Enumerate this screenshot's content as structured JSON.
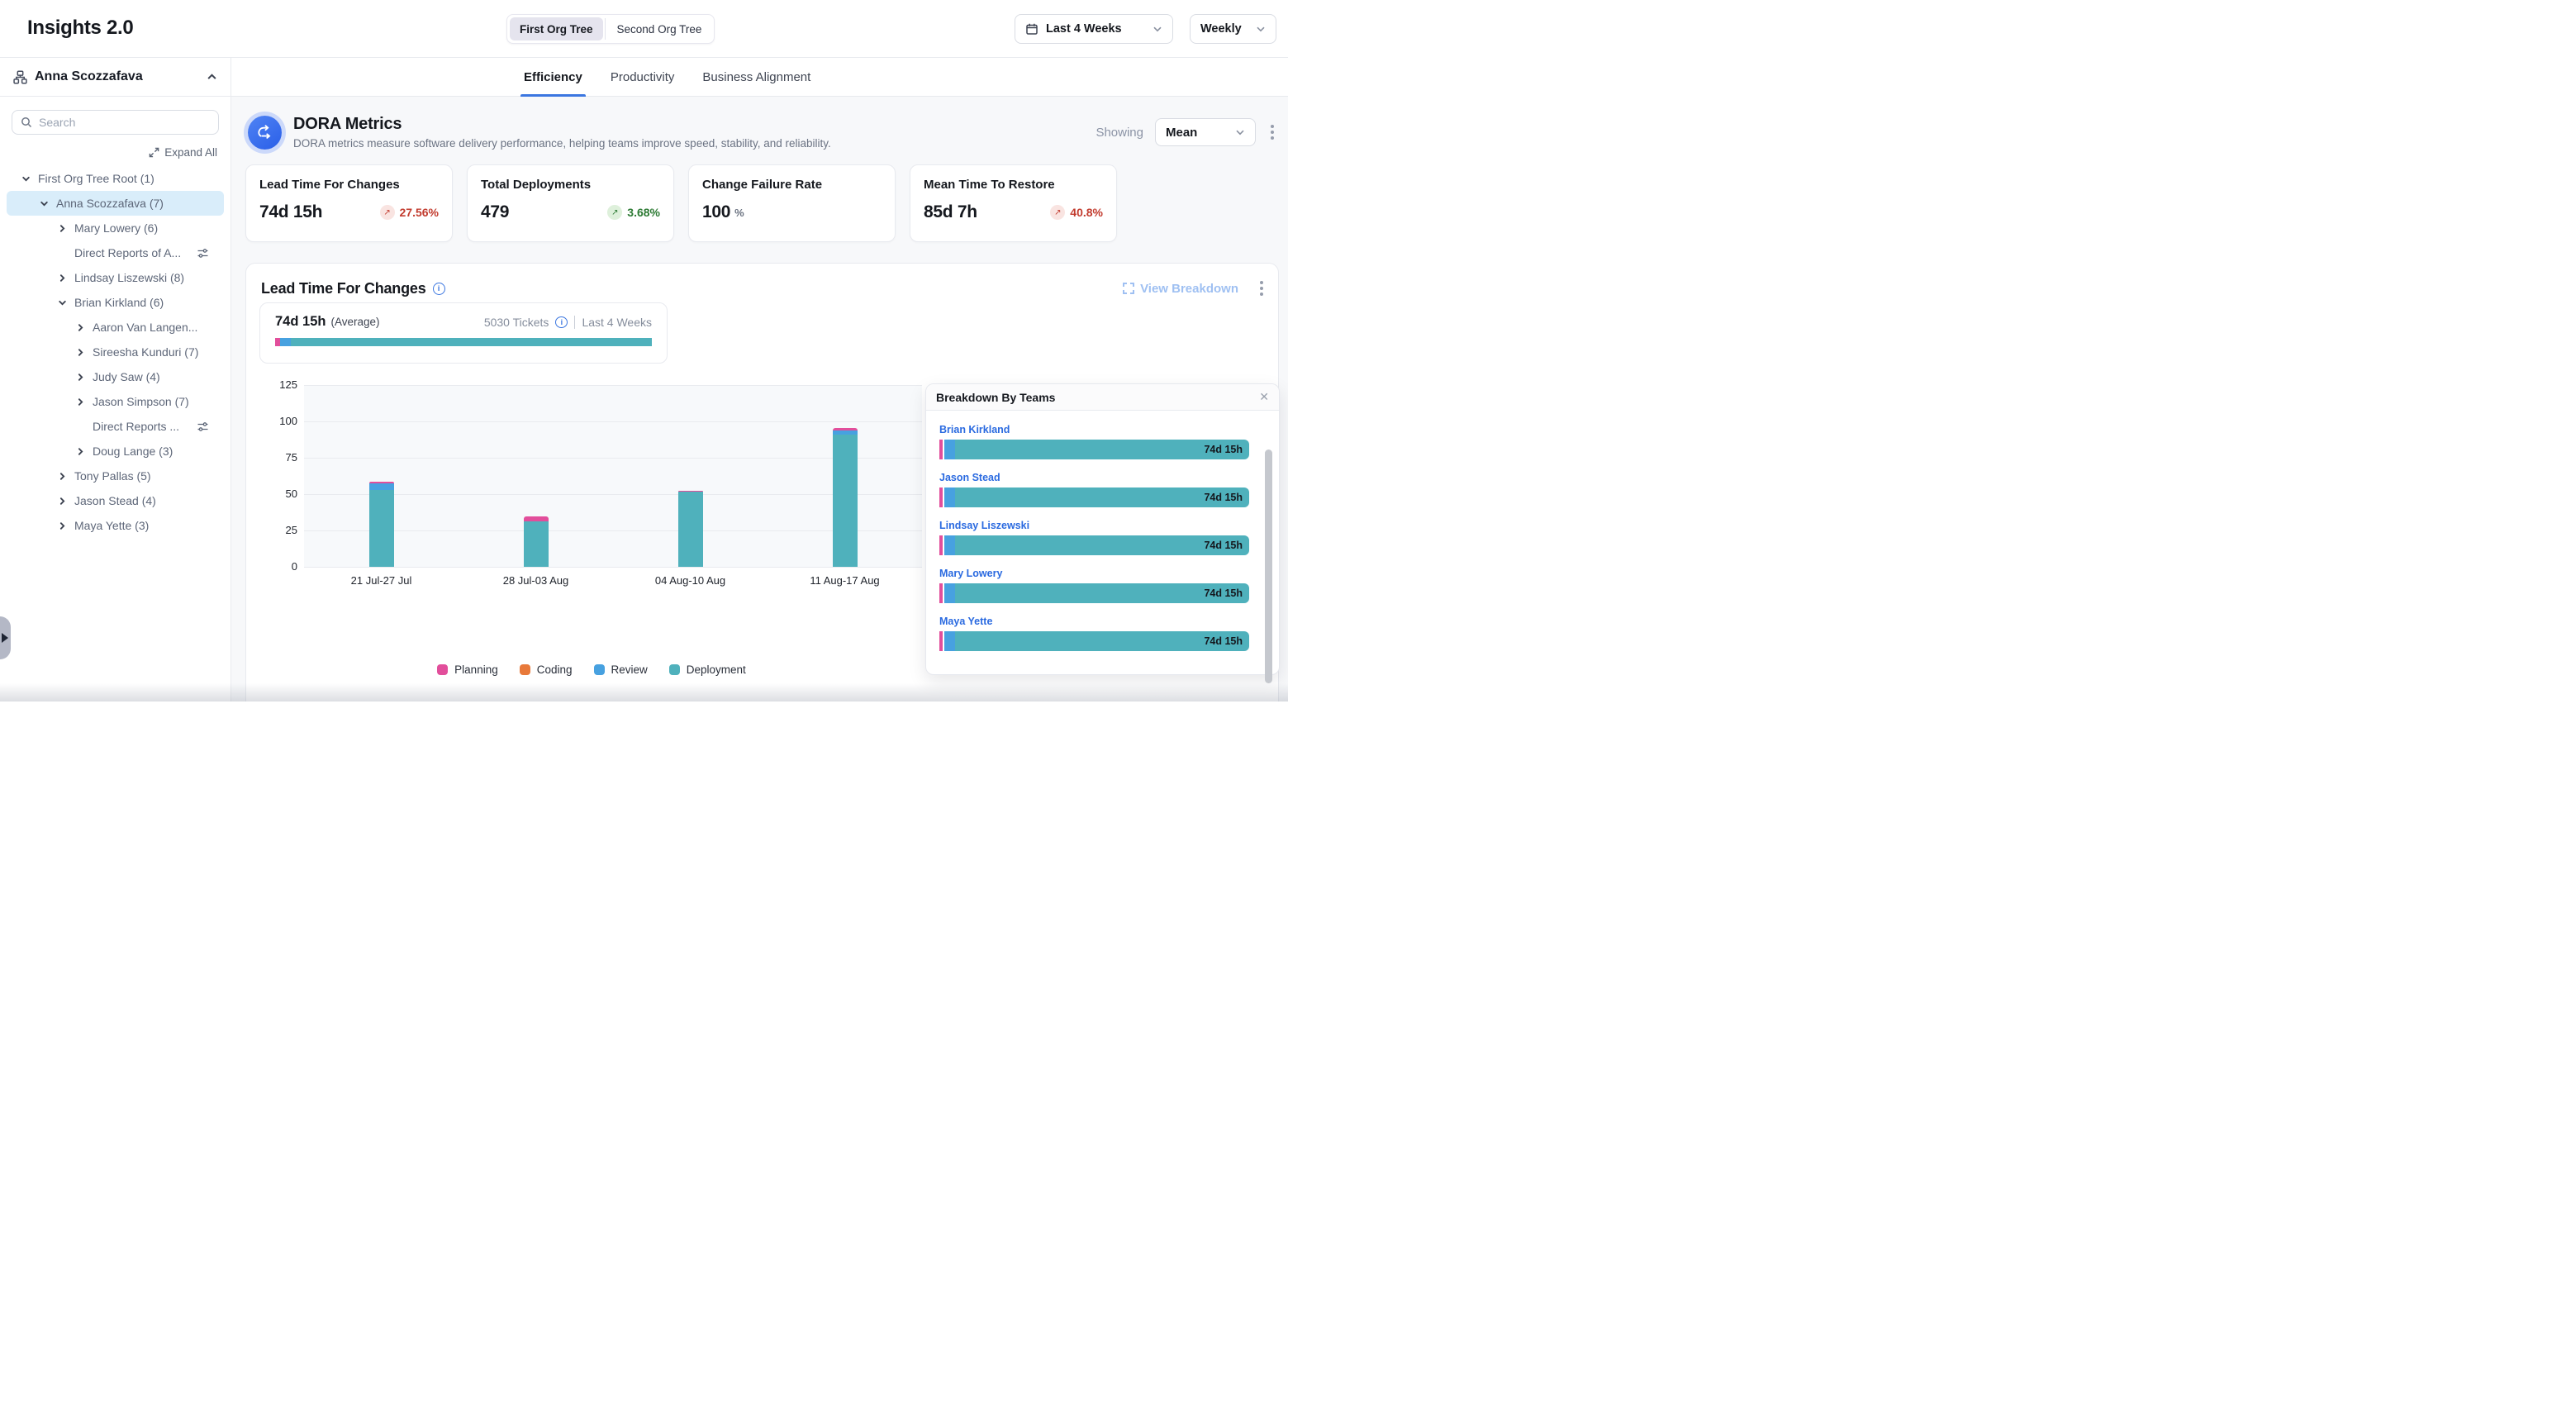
{
  "header": {
    "title": "Insights 2.0",
    "org_toggle": {
      "options": [
        "First Org Tree",
        "Second Org Tree"
      ],
      "selected": "First Org Tree"
    },
    "date_range": "Last 4 Weeks",
    "granularity": "Weekly"
  },
  "sidebar": {
    "user": "Anna Scozzafava",
    "search_placeholder": "Search",
    "expand_all": "Expand All",
    "tree": [
      {
        "label": "First Org Tree Root (1)",
        "indent": 0,
        "chevron": "down"
      },
      {
        "label": "Anna Scozzafava (7)",
        "indent": 1,
        "chevron": "down",
        "selected": true
      },
      {
        "label": "Mary Lowery (6)",
        "indent": 2,
        "chevron": "right"
      },
      {
        "label": "Direct Reports of A...",
        "indent": 2,
        "chevron": "none",
        "filter": true
      },
      {
        "label": "Lindsay Liszewski (8)",
        "indent": 2,
        "chevron": "right"
      },
      {
        "label": "Brian Kirkland (6)",
        "indent": 2,
        "chevron": "down"
      },
      {
        "label": "Aaron Van Langen...",
        "indent": 3,
        "chevron": "right"
      },
      {
        "label": "Sireesha Kunduri (7)",
        "indent": 3,
        "chevron": "right"
      },
      {
        "label": "Judy Saw (4)",
        "indent": 3,
        "chevron": "right"
      },
      {
        "label": "Jason Simpson (7)",
        "indent": 3,
        "chevron": "right"
      },
      {
        "label": "Direct Reports ...",
        "indent": 3,
        "chevron": "none",
        "filter": true
      },
      {
        "label": "Doug Lange (3)",
        "indent": 3,
        "chevron": "right"
      },
      {
        "label": "Tony Pallas (5)",
        "indent": 2,
        "chevron": "right"
      },
      {
        "label": "Jason Stead (4)",
        "indent": 2,
        "chevron": "right"
      },
      {
        "label": "Maya Yette (3)",
        "indent": 2,
        "chevron": "right"
      }
    ]
  },
  "tabs": [
    {
      "label": "Efficiency",
      "active": true
    },
    {
      "label": "Productivity",
      "active": false
    },
    {
      "label": "Business Alignment",
      "active": false
    }
  ],
  "dora": {
    "title": "DORA Metrics",
    "subtitle": "DORA metrics measure software delivery performance, helping teams improve speed, stability, and reliability.",
    "showing_label": "Showing",
    "showing_value": "Mean"
  },
  "metric_cards": [
    {
      "title": "Lead Time For Changes",
      "value": "74d 15h",
      "badge": {
        "direction": "up",
        "value": "27.56%",
        "tone": "negative"
      }
    },
    {
      "title": "Total Deployments",
      "value": "479",
      "badge": {
        "direction": "up",
        "value": "3.68%",
        "tone": "positive"
      }
    },
    {
      "title": "Change Failure Rate",
      "value": "100",
      "unit": "%"
    },
    {
      "title": "Mean Time To Restore",
      "value": "85d 7h",
      "badge": {
        "direction": "up",
        "value": "40.8%",
        "tone": "negative"
      }
    }
  ],
  "lead_section": {
    "title": "Lead Time For Changes",
    "view_breakdown": "View Breakdown",
    "summary": {
      "value": "74d 15h",
      "qualifier": "(Average)",
      "tickets": "5030 Tickets",
      "period": "Last 4 Weeks",
      "bar_segments": [
        {
          "name": "Planning",
          "color": "#e24e9b",
          "pct": 1.3
        },
        {
          "name": "Review",
          "color": "#47a1e0",
          "pct": 2.8
        },
        {
          "name": "Deployment",
          "color": "#4fb1bc",
          "pct": 95.9
        }
      ]
    }
  },
  "chart_data": {
    "type": "bar",
    "stacked": true,
    "title": "Lead Time For Changes by week (days)",
    "categories": [
      "21 Jul-27 Jul",
      "28 Jul-03 Aug",
      "04 Aug-10 Aug",
      "11 Aug-17 Aug"
    ],
    "series": [
      {
        "name": "Planning",
        "color": "#e24e9b",
        "values": [
          1,
          3,
          1,
          1.5
        ]
      },
      {
        "name": "Coding",
        "color": "#e8793a",
        "values": [
          0,
          0,
          0,
          0
        ]
      },
      {
        "name": "Review",
        "color": "#47a1e0",
        "values": [
          4.5,
          0,
          0,
          3
        ]
      },
      {
        "name": "Deployment",
        "color": "#4fb1bc",
        "values": [
          53,
          31.5,
          51.5,
          91
        ]
      }
    ],
    "xlabel": "",
    "ylabel": "",
    "ylim": [
      0,
      125
    ],
    "yticks": [
      0,
      25,
      50,
      75,
      100,
      125
    ],
    "grid": true,
    "legend_position": "bottom"
  },
  "breakdown_panel": {
    "title": "Breakdown By Teams",
    "rows": [
      {
        "name": "Brian Kirkland",
        "value": "74d 15h"
      },
      {
        "name": "Jason Stead",
        "value": "74d 15h"
      },
      {
        "name": "Lindsay Liszewski",
        "value": "74d 15h"
      },
      {
        "name": "Mary Lowery",
        "value": "74d 15h"
      },
      {
        "name": "Maya Yette",
        "value": "74d 15h"
      }
    ],
    "bar_colors": {
      "planning": "#e24e9b",
      "review": "#47a1e0",
      "deployment": "#4fb1bc"
    }
  },
  "colors": {
    "accent_blue": "#3b76e0",
    "link_blue": "#2a6ae0",
    "negative_red": "#c23b2e",
    "positive_green": "#2c7a33",
    "planning_pink": "#e24e9b",
    "coding_orange": "#e8793a",
    "review_blue": "#47a1e0",
    "deployment_teal": "#4fb1bc",
    "selected_row_bg": "#d9edfa"
  }
}
